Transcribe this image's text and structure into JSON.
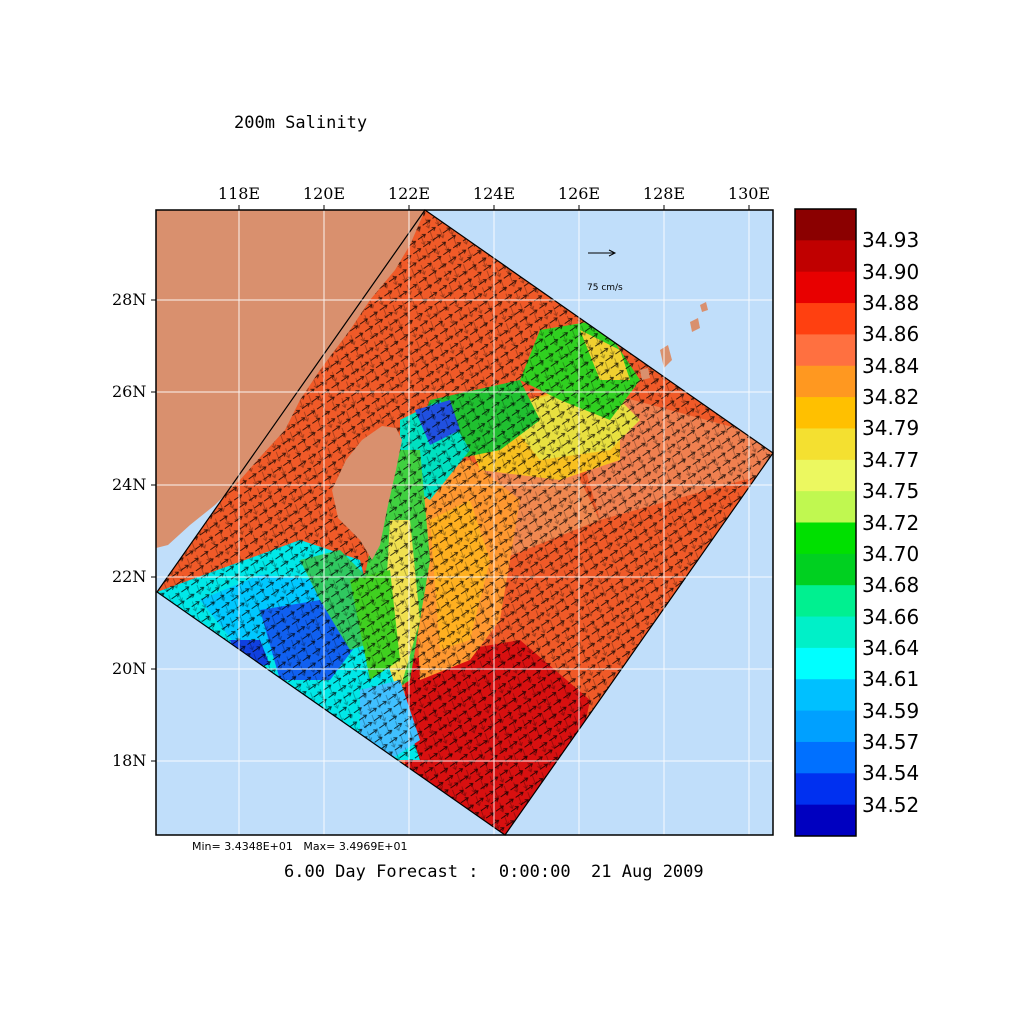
{
  "title": "200m Salinity",
  "lon_labels": [
    "118E",
    "120E",
    "122E",
    "124E",
    "126E",
    "128E",
    "130E"
  ],
  "lat_labels": [
    "28N",
    "26N",
    "24N",
    "22N",
    "20N",
    "18N"
  ],
  "vector_scale_label": "75 cm/s",
  "min_text": "Min= 3.4348E+01",
  "max_text": "Max= 3.4969E+01",
  "forecast_label": "6.00 Day Forecast :  0:00:00  21 Aug 2009",
  "legend": {
    "labels": [
      "34.93",
      "34.90",
      "34.88",
      "34.86",
      "34.84",
      "34.82",
      "34.79",
      "34.77",
      "34.75",
      "34.72",
      "34.70",
      "34.68",
      "34.66",
      "34.64",
      "34.61",
      "34.59",
      "34.57",
      "34.54",
      "34.52"
    ],
    "colors": [
      "#8b0000",
      "#c00000",
      "#e80000",
      "#ff4010",
      "#ff7040",
      "#ff9820",
      "#ffc000",
      "#f4e030",
      "#ecf860",
      "#c0f850",
      "#00e000",
      "#00d020",
      "#00f090",
      "#00f0c8",
      "#00ffff",
      "#00c0ff",
      "#00a0ff",
      "#0070ff",
      "#0030f0",
      "#0000c0"
    ]
  },
  "colors": {
    "ocean": "#c0defa",
    "land": "#d9906e"
  }
}
